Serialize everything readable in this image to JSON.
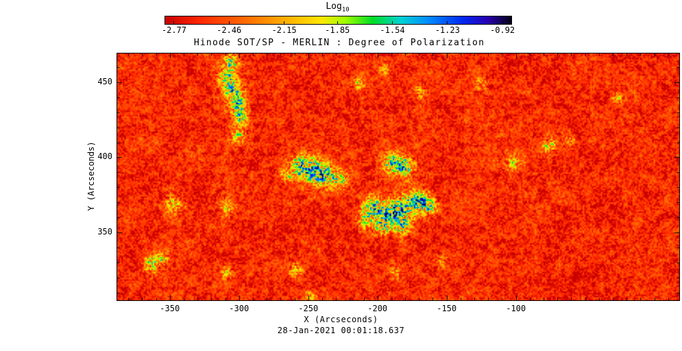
{
  "figure": {
    "background": "#ffffff",
    "title": "Hinode SOT/SP - MERLIN : Degree of Polarization",
    "timestamp": "28-Jan-2021 00:01:18.637"
  },
  "colorbar": {
    "label_base": "Log",
    "label_sub": "10",
    "ticks": [
      "-2.77",
      "-2.46",
      "-2.15",
      "-1.85",
      "-1.54",
      "-1.23",
      "-0.92"
    ],
    "vmin": -2.82,
    "vmax": -0.87,
    "stops": [
      {
        "t": 0.0,
        "color": "#c80000"
      },
      {
        "t": 0.1,
        "color": "#ff2800"
      },
      {
        "t": 0.22,
        "color": "#ff6400"
      },
      {
        "t": 0.34,
        "color": "#ffaa00"
      },
      {
        "t": 0.45,
        "color": "#ffe600"
      },
      {
        "t": 0.52,
        "color": "#a0ff00"
      },
      {
        "t": 0.6,
        "color": "#00dc28"
      },
      {
        "t": 0.68,
        "color": "#00d2d2"
      },
      {
        "t": 0.76,
        "color": "#008cff"
      },
      {
        "t": 0.86,
        "color": "#0028f0"
      },
      {
        "t": 0.93,
        "color": "#2800b4"
      },
      {
        "t": 1.0,
        "color": "#050014"
      }
    ]
  },
  "axes": {
    "x": {
      "label": "X (Arcseconds)",
      "ticks": [
        -350,
        -300,
        -250,
        -200,
        -150,
        -100
      ],
      "range": [
        -388,
        18
      ],
      "minor_step": 10
    },
    "y": {
      "label": "Y (Arcseconds)",
      "ticks": [
        350,
        400,
        450
      ],
      "range": [
        305,
        469
      ],
      "minor_step": 10
    }
  },
  "chart_data": {
    "type": "heatmap",
    "title": "Hinode SOT/SP - MERLIN : Degree of Polarization",
    "subtitle": "28-Jan-2021 00:01:18.637",
    "xlabel": "X (Arcseconds)",
    "ylabel": "Y (Arcseconds)",
    "colorbar_label": "Log10",
    "colorbar_ticks": [
      -2.77,
      -2.46,
      -2.15,
      -1.85,
      -1.54,
      -1.23,
      -0.92
    ],
    "value_range": [
      -2.82,
      -0.87
    ],
    "x_range": [
      -388,
      18
    ],
    "y_range": [
      305,
      469
    ],
    "background_level": {
      "mean": -2.3,
      "spread": 0.35,
      "description": "granular red-orange quiet-sun field with fine yellow-green speckles"
    },
    "network_level": -1.8,
    "noise": {
      "fine_scale": 2.2,
      "medium_scale": 7,
      "large_scale": 26,
      "network_scale": 13,
      "network_threshold": 0.62,
      "network_gain": 1.5
    },
    "strong_polarization_patches": [
      {
        "x": -306,
        "y": 463,
        "r": 4,
        "amp": 1.5
      },
      {
        "x": -309,
        "y": 453,
        "r": 4,
        "amp": 1.7
      },
      {
        "x": -304,
        "y": 444,
        "r": 5,
        "amp": 1.6
      },
      {
        "x": -301,
        "y": 435,
        "r": 4,
        "amp": 1.5
      },
      {
        "x": -299,
        "y": 426,
        "r": 4,
        "amp": 1.4
      },
      {
        "x": -301,
        "y": 414,
        "r": 4,
        "amp": 1.1
      },
      {
        "x": -257,
        "y": 395,
        "r": 5,
        "amp": 1.7
      },
      {
        "x": -247,
        "y": 391,
        "r": 6,
        "amp": 1.8
      },
      {
        "x": -237,
        "y": 388,
        "r": 5,
        "amp": 1.6
      },
      {
        "x": -266,
        "y": 388,
        "r": 3,
        "amp": 1.2
      },
      {
        "x": -227,
        "y": 385,
        "r": 4,
        "amp": 1.4
      },
      {
        "x": -190,
        "y": 396,
        "r": 5,
        "amp": 1.7
      },
      {
        "x": -180,
        "y": 394,
        "r": 5,
        "amp": 1.6
      },
      {
        "x": -204,
        "y": 367,
        "r": 5,
        "amp": 1.6
      },
      {
        "x": -192,
        "y": 363,
        "r": 6,
        "amp": 1.8
      },
      {
        "x": -180,
        "y": 367,
        "r": 6,
        "amp": 1.8
      },
      {
        "x": -170,
        "y": 372,
        "r": 5,
        "amp": 1.6
      },
      {
        "x": -162,
        "y": 367,
        "r": 4,
        "amp": 1.5
      },
      {
        "x": -197,
        "y": 354,
        "r": 4,
        "amp": 1.4
      },
      {
        "x": -209,
        "y": 358,
        "r": 4,
        "amp": 1.3
      },
      {
        "x": -182,
        "y": 354,
        "r": 4,
        "amp": 1.5
      },
      {
        "x": -363,
        "y": 329,
        "r": 4,
        "amp": 1.5
      },
      {
        "x": -356,
        "y": 333,
        "r": 3,
        "amp": 1.2
      },
      {
        "x": -348,
        "y": 369,
        "r": 5,
        "amp": 0.9
      },
      {
        "x": -309,
        "y": 367,
        "r": 4,
        "amp": 0.8
      },
      {
        "x": -103,
        "y": 397,
        "r": 4,
        "amp": 1.0
      },
      {
        "x": -76,
        "y": 408,
        "r": 4,
        "amp": 1.1
      },
      {
        "x": -61,
        "y": 411,
        "r": 3,
        "amp": 0.9
      },
      {
        "x": -26,
        "y": 440,
        "r": 3,
        "amp": 0.8
      },
      {
        "x": -259,
        "y": 326,
        "r": 4,
        "amp": 0.9
      },
      {
        "x": -187,
        "y": 324,
        "r": 3,
        "amp": 0.9
      },
      {
        "x": -155,
        "y": 331,
        "r": 3,
        "amp": 0.8
      },
      {
        "x": -309,
        "y": 324,
        "r": 3,
        "amp": 1.0
      },
      {
        "x": -249,
        "y": 308,
        "r": 3,
        "amp": 0.8
      },
      {
        "x": -214,
        "y": 449,
        "r": 3,
        "amp": 0.9
      },
      {
        "x": -195,
        "y": 459,
        "r": 3,
        "amp": 0.8
      },
      {
        "x": -170,
        "y": 443,
        "r": 3,
        "amp": 0.8
      },
      {
        "x": -125,
        "y": 449,
        "r": 3,
        "amp": 0.8
      }
    ]
  }
}
